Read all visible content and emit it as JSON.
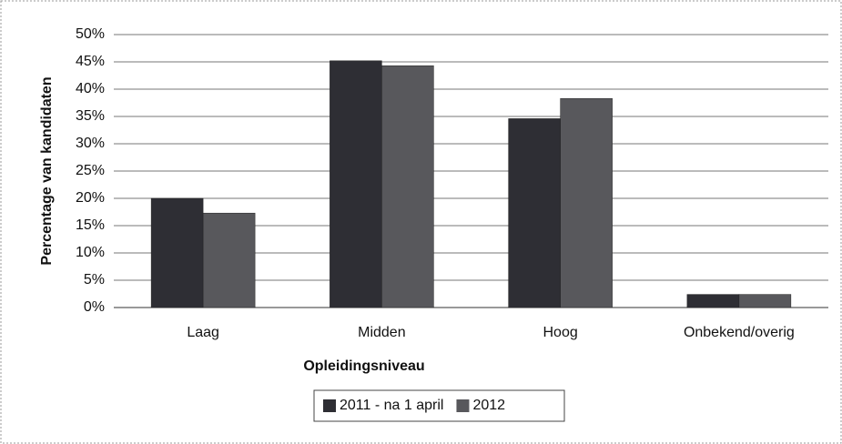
{
  "chart_data": {
    "type": "bar",
    "x_label": "Opleidingsniveau",
    "y_label": "Percentage van kandidaten",
    "categories": [
      "Laag",
      "Midden",
      "Hoog",
      "Onbekend/overig"
    ],
    "series": [
      {
        "name": "2011 - na 1 april",
        "color": "#2e2e34",
        "values": [
          20,
          45.2,
          34.6,
          2.4
        ]
      },
      {
        "name": "2012",
        "color": "#58585c",
        "values": [
          17.3,
          44.3,
          38.3,
          2.4
        ]
      }
    ],
    "ylim": [
      0,
      50
    ],
    "yticks": [
      {
        "value": 0,
        "label": "0%"
      },
      {
        "value": 5,
        "label": "5%"
      },
      {
        "value": 10,
        "label": "10%"
      },
      {
        "value": 15,
        "label": "15%"
      },
      {
        "value": 20,
        "label": "20%"
      },
      {
        "value": 25,
        "label": "25%"
      },
      {
        "value": 30,
        "label": "30%"
      },
      {
        "value": 35,
        "label": "35%"
      },
      {
        "value": 40,
        "label": "40%"
      },
      {
        "value": 45,
        "label": "45%"
      },
      {
        "value": 50,
        "label": "50%"
      }
    ],
    "grid": true,
    "legend": "bottom"
  }
}
